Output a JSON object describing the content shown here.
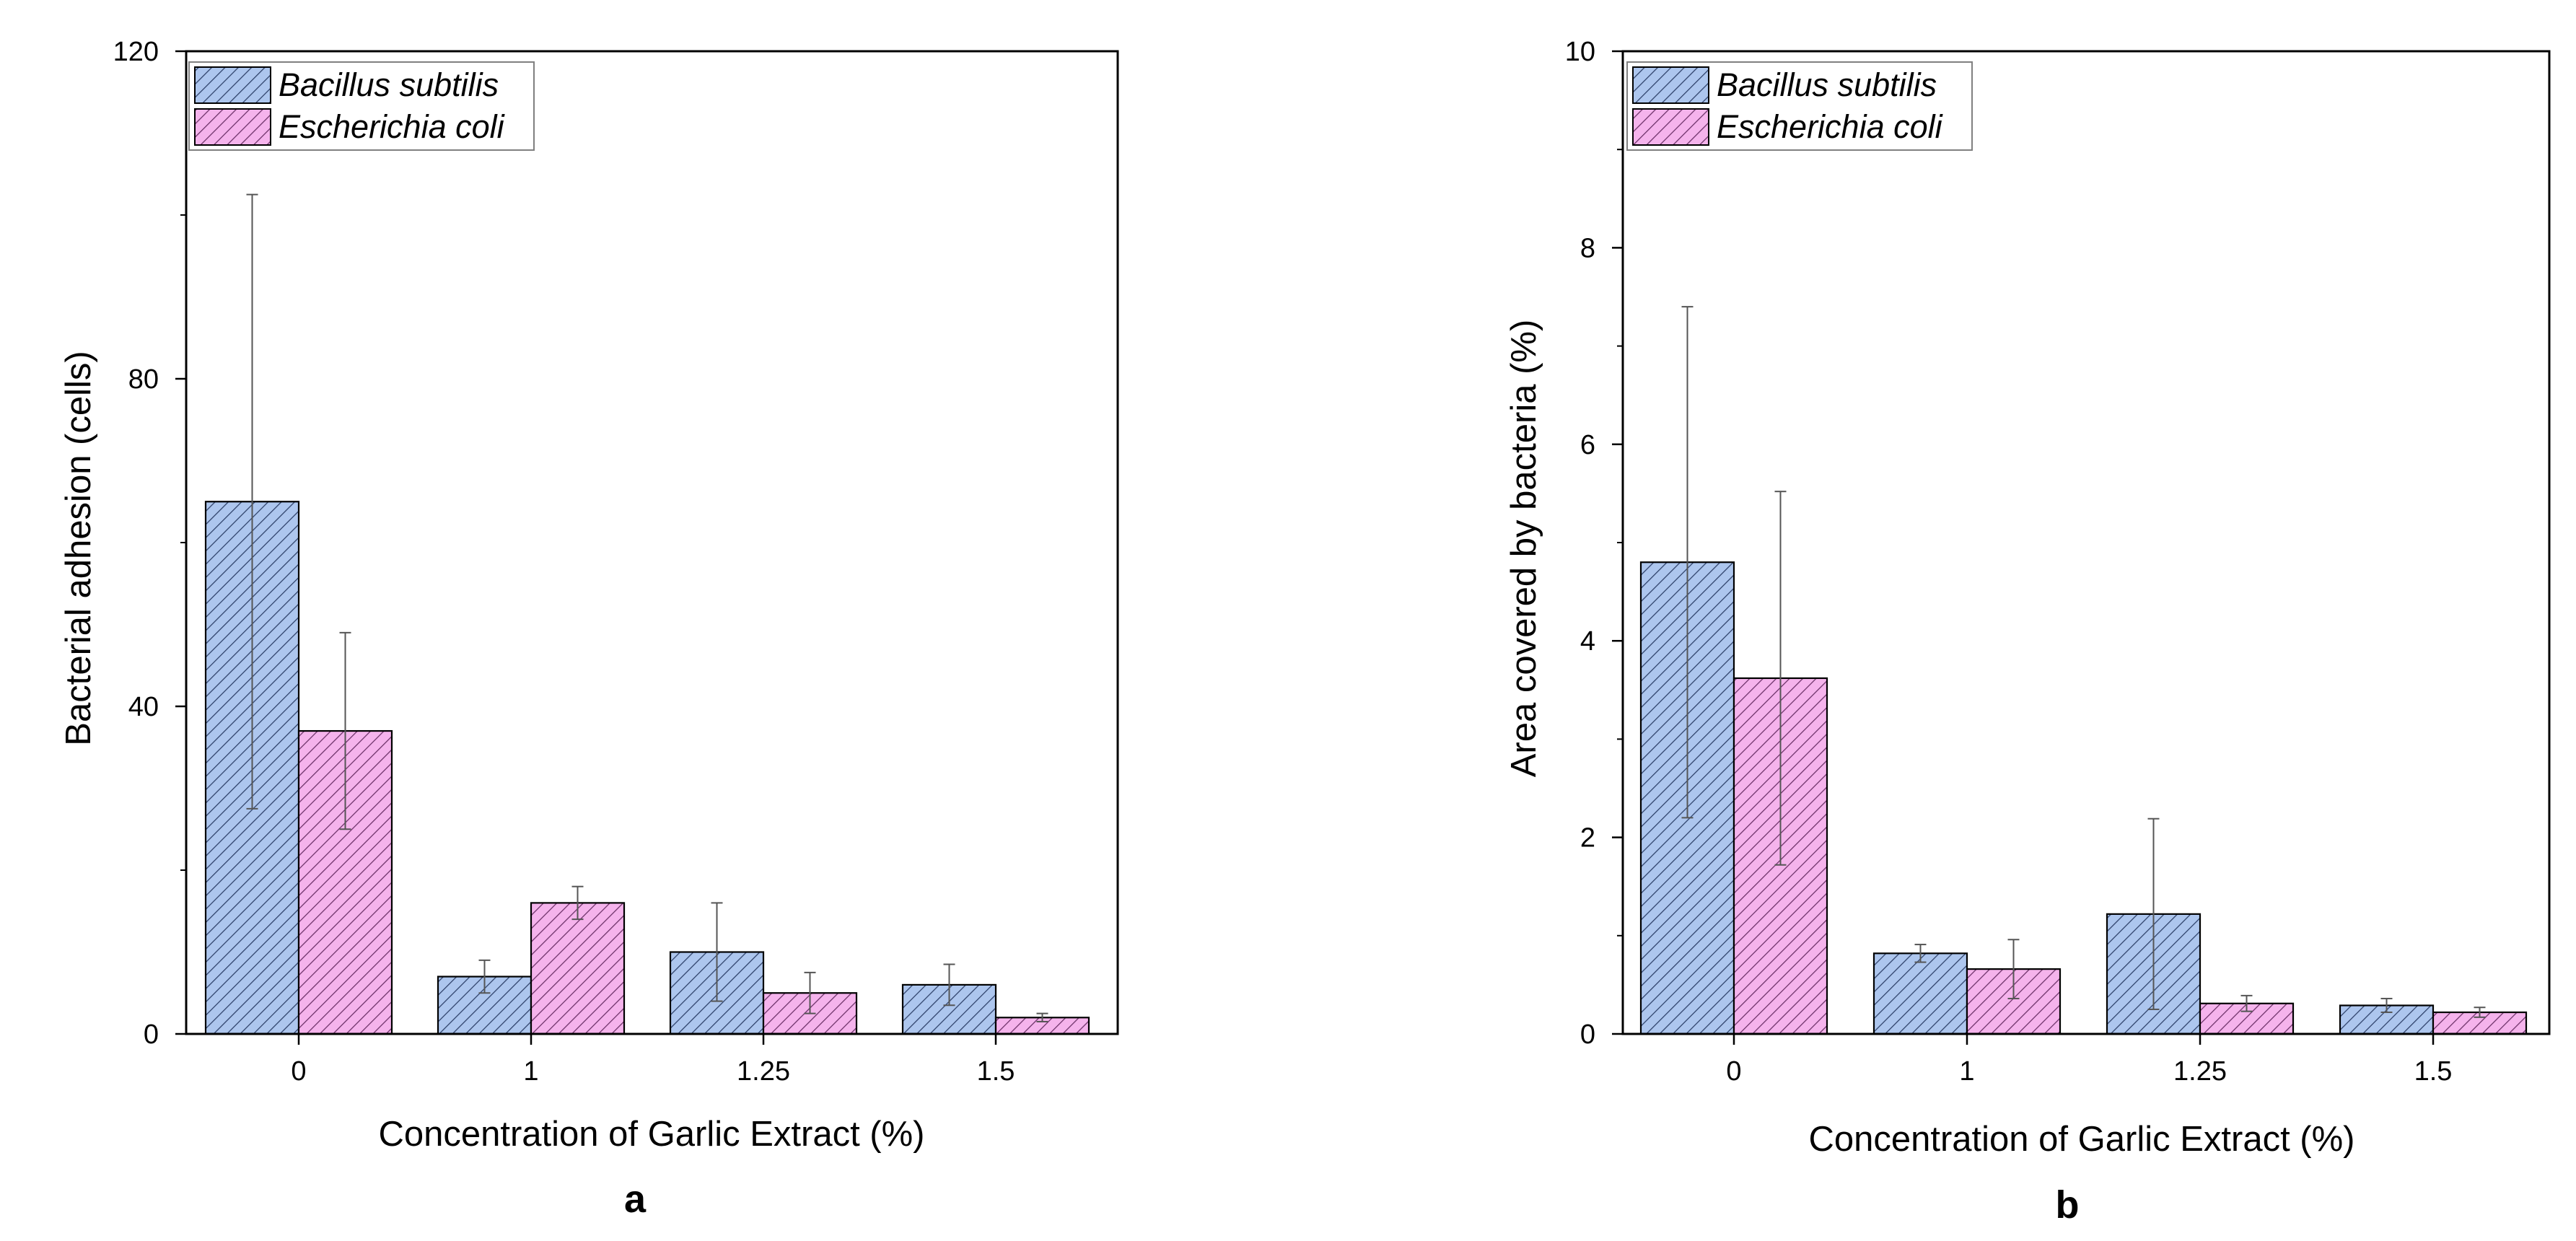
{
  "chart_data": [
    {
      "type": "bar",
      "panel_label": "a",
      "xlabel": "Concentration of Garlic Extract (%)",
      "ylabel": "Bacterial adhesion (cells)",
      "ylim": [
        0,
        120
      ],
      "yticks": [
        0,
        40,
        80,
        120
      ],
      "categories": [
        "0",
        "1",
        "1.25",
        "1.5"
      ],
      "legend_position": "top-left",
      "series": [
        {
          "name": "Bacillus subtilis",
          "values": [
            65,
            7,
            10,
            6
          ],
          "errors": [
            37.5,
            2,
            6,
            2.5
          ]
        },
        {
          "name": "Escherichia coli",
          "values": [
            37,
            16,
            5,
            2
          ],
          "errors": [
            12,
            2,
            2.5,
            0.5
          ]
        }
      ]
    },
    {
      "type": "bar",
      "panel_label": "b",
      "xlabel": "Concentration of Garlic Extract (%)",
      "ylabel": "Area covered by bacteria (%)",
      "ylim": [
        0,
        10
      ],
      "yticks": [
        0,
        2,
        4,
        6,
        8,
        10
      ],
      "categories": [
        "0",
        "1",
        "1.25",
        "1.5"
      ],
      "legend_position": "top-left",
      "series": [
        {
          "name": "Bacillus subtilis",
          "values": [
            4.8,
            0.82,
            1.22,
            0.29
          ],
          "errors": [
            2.6,
            0.09,
            0.97,
            0.07
          ]
        },
        {
          "name": "Escherichia coli",
          "values": [
            3.62,
            0.66,
            0.31,
            0.22
          ],
          "errors": [
            1.9,
            0.3,
            0.08,
            0.05
          ]
        }
      ]
    }
  ],
  "colors": {
    "bacillus_fill": "#adc6ee",
    "bacillus_hatch": "#2c3f68",
    "ecoli_fill": "#f5b3ec",
    "ecoli_hatch": "#6a2f66",
    "axis": "#000000",
    "errorbar": "#555555"
  }
}
